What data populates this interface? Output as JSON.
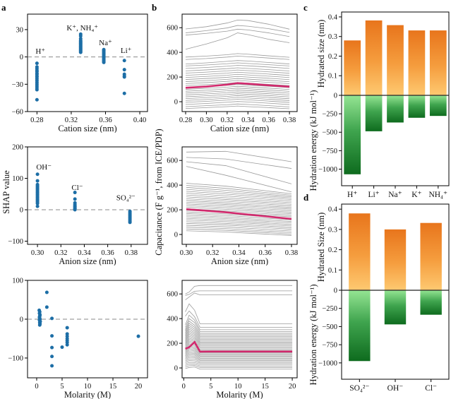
{
  "figure": {
    "panels": {
      "a": "a",
      "b": "b",
      "c": "c",
      "d": "d"
    },
    "shap_axis_label": "SHAP value",
    "capacitance_axis_label": "Capacitance (F g⁻¹, from ICE/PDP)"
  },
  "colors": {
    "scatter_point": "#1d6ea6",
    "mean_line": "#d22a6e",
    "ensemble_line": "#9a9a9a",
    "zero_dash": "#8a8a8a",
    "axis": "#000000",
    "bar_orange_top": "#e8751c",
    "bar_orange_mid": "#f59d3e",
    "bar_orange_bottom": "#fec971",
    "bar_green_top": "#95e593",
    "bar_green_mid": "#3fa44e",
    "bar_green_bottom": "#0e6b1e"
  },
  "chart_data": [
    {
      "id": "shap_vs_cation_size",
      "type": "scatter",
      "xlabel": "Cation size (nm)",
      "ylabel": "SHAP value",
      "xlim": [
        0.269,
        0.409
      ],
      "ylim": [
        -60,
        47
      ],
      "xticks": [
        0.28,
        0.32,
        0.36,
        0.4
      ],
      "xtick_dec": 2,
      "yticks": [
        30,
        0,
        -30,
        -60
      ],
      "zero_line": true,
      "groups": [
        {
          "name": "H+",
          "label": "H⁺",
          "label_x": 0.284,
          "label_y": 3.5,
          "x": 0.28,
          "ys": [
            -7,
            -11,
            -13,
            -15,
            -16,
            -18,
            -19,
            -21,
            -22,
            -24,
            -26,
            -28,
            -30,
            -32,
            -34,
            -36,
            -47
          ]
        },
        {
          "name": "K+ NH4+",
          "label": "K⁺, NH₄⁺",
          "label_x": 0.333,
          "label_y": 29,
          "x": 0.331,
          "ys": [
            5,
            6,
            7,
            8,
            9,
            10,
            11,
            12,
            13,
            14,
            15,
            16,
            17,
            18,
            20,
            23,
            25
          ]
        },
        {
          "name": "Na+",
          "label": "Na⁺",
          "label_x": 0.36,
          "label_y": 13,
          "x": 0.358,
          "ys": [
            -6,
            -5,
            -4,
            -3,
            -2,
            -1,
            0,
            1,
            2,
            3,
            4,
            5,
            6,
            7,
            8
          ]
        },
        {
          "name": "Li+",
          "label": "Li⁺",
          "label_x": 0.384,
          "label_y": 4.5,
          "x": 0.382,
          "ys": [
            -4,
            -14,
            -19,
            -21,
            -22,
            -40
          ]
        }
      ]
    },
    {
      "id": "shap_vs_anion_size",
      "type": "scatter",
      "xlabel": "Anion size (nm)",
      "ylabel": "SHAP value",
      "xlim": [
        0.2915,
        0.394
      ],
      "ylim": [
        -110,
        200
      ],
      "xticks": [
        0.3,
        0.32,
        0.34,
        0.36,
        0.38
      ],
      "xtick_dec": 2,
      "yticks": [
        200,
        100,
        0,
        -100
      ],
      "zero_line": true,
      "groups": [
        {
          "name": "OH-",
          "label": "OH⁻",
          "label_x": 0.3055,
          "label_y": 128,
          "x": 0.3,
          "ys": [
            113,
            92,
            80,
            76,
            72,
            68,
            64,
            60,
            56,
            52,
            48,
            44,
            40,
            36,
            32,
            28,
            24,
            20,
            11
          ]
        },
        {
          "name": "Cl-",
          "label": "Cl⁻",
          "label_x": 0.334,
          "label_y": 63,
          "x": 0.332,
          "ys": [
            55,
            34,
            22,
            17,
            13,
            10,
            7,
            4,
            2,
            0
          ]
        },
        {
          "name": "SO4 2-",
          "label": "SO₄²⁻",
          "label_x": 0.3755,
          "label_y": 30,
          "x": 0.379,
          "ys": [
            -5,
            -9,
            -13,
            -17,
            -21,
            -25,
            -29,
            -33,
            -37,
            -40
          ]
        }
      ]
    },
    {
      "id": "shap_vs_molarity",
      "type": "scatter",
      "xlabel": "Molarity (M)",
      "ylabel": "SHAP value",
      "xlim": [
        -1.8,
        21.8
      ],
      "ylim": [
        -151,
        100
      ],
      "xticks": [
        0,
        5,
        10,
        15,
        20
      ],
      "xtick_dec": 0,
      "yticks": [
        100,
        0,
        -100
      ],
      "zero_line": true,
      "points": [
        [
          0.5,
          23
        ],
        [
          0.6,
          19
        ],
        [
          0.55,
          15
        ],
        [
          0.65,
          11
        ],
        [
          0.6,
          8
        ],
        [
          0.55,
          5
        ],
        [
          0.6,
          2
        ],
        [
          0.65,
          0
        ],
        [
          0.55,
          -2
        ],
        [
          0.6,
          -4
        ],
        [
          0.7,
          -6
        ],
        [
          0.6,
          -9
        ],
        [
          0.65,
          -12
        ],
        [
          0.6,
          -15
        ],
        [
          2,
          69
        ],
        [
          2,
          31
        ],
        [
          3,
          2
        ],
        [
          3,
          -43
        ],
        [
          3,
          -73
        ],
        [
          3,
          -96
        ],
        [
          3,
          -120
        ],
        [
          5,
          -72
        ],
        [
          6,
          -22
        ],
        [
          6,
          -38
        ],
        [
          6,
          -44
        ],
        [
          6,
          -50
        ],
        [
          6,
          -55
        ],
        [
          6,
          -60
        ],
        [
          6,
          -66
        ],
        [
          20,
          -44
        ]
      ]
    },
    {
      "id": "capacitance_vs_cation_size",
      "type": "line",
      "xlabel": "Cation size (nm)",
      "ylabel": "Capacitance (F g⁻¹, from ICE/PDP)",
      "xlim": [
        0.2766,
        0.3874
      ],
      "ylim": [
        -80,
        710
      ],
      "xticks": [
        0.28,
        0.3,
        0.32,
        0.34,
        0.36,
        0.38
      ],
      "xtick_dec": 2,
      "yticks": [
        0,
        200,
        400,
        600
      ],
      "x": [
        0.28,
        0.3,
        0.32,
        0.33,
        0.34,
        0.36,
        0.38
      ],
      "lines": [
        [
          590,
          608,
          638,
          662,
          658,
          628,
          588
        ],
        [
          558,
          576,
          598,
          618,
          612,
          592,
          562
        ],
        [
          540,
          554,
          572,
          588,
          582,
          558,
          528
        ],
        [
          425,
          468,
          518,
          558,
          544,
          506,
          478
        ],
        [
          362,
          370,
          381,
          390,
          385,
          372,
          360
        ],
        [
          342,
          350,
          362,
          370,
          365,
          354,
          342
        ],
        [
          305,
          315,
          327,
          334,
          330,
          318,
          306
        ],
        [
          290,
          298,
          308,
          315,
          310,
          300,
          290
        ],
        [
          270,
          278,
          288,
          295,
          291,
          281,
          270
        ],
        [
          250,
          258,
          268,
          275,
          270,
          260,
          249
        ],
        [
          232,
          240,
          250,
          257,
          252,
          242,
          231
        ],
        [
          214,
          222,
          232,
          239,
          234,
          224,
          213
        ],
        [
          197,
          205,
          215,
          222,
          217,
          207,
          196
        ],
        [
          180,
          188,
          198,
          205,
          200,
          190,
          179
        ],
        [
          163,
          171,
          181,
          188,
          183,
          173,
          162
        ],
        [
          147,
          155,
          165,
          172,
          167,
          157,
          146
        ],
        [
          131,
          139,
          149,
          156,
          151,
          141,
          130
        ],
        [
          115,
          123,
          133,
          140,
          135,
          125,
          114
        ],
        [
          100,
          108,
          118,
          125,
          120,
          110,
          99
        ],
        [
          85,
          93,
          103,
          110,
          105,
          95,
          84
        ],
        [
          70,
          78,
          88,
          95,
          90,
          80,
          69
        ],
        [
          55,
          63,
          73,
          80,
          75,
          65,
          54
        ],
        [
          40,
          48,
          58,
          65,
          60,
          50,
          39
        ],
        [
          25,
          33,
          43,
          50,
          45,
          35,
          24
        ],
        [
          10,
          18,
          28,
          35,
          30,
          20,
          9
        ],
        [
          -5,
          3,
          13,
          20,
          15,
          5,
          -6
        ],
        [
          -22,
          -14,
          -4,
          2,
          -2,
          -12,
          -23
        ],
        [
          -40,
          -32,
          -24,
          -18,
          -22,
          -32,
          -42
        ],
        [
          -55,
          -48,
          -40,
          -35,
          -40,
          -48,
          -57
        ]
      ],
      "mean": [
        113,
        123,
        139,
        151,
        146,
        133,
        122
      ]
    },
    {
      "id": "capacitance_vs_anion_size",
      "type": "line",
      "xlabel": "Anion size (nm)",
      "ylabel": "Capacitance (F g⁻¹, from ICE/PDP)",
      "xlim": [
        0.2968,
        0.3843
      ],
      "ylim": [
        -80,
        710
      ],
      "xticks": [
        0.3,
        0.32,
        0.34,
        0.36,
        0.38
      ],
      "xtick_dec": 2,
      "yticks": [
        0,
        200,
        400,
        600
      ],
      "x": [
        0.3,
        0.33,
        0.38
      ],
      "lines": [
        [
          668,
          674,
          590
        ],
        [
          625,
          612,
          535
        ],
        [
          590,
          558,
          410
        ],
        [
          552,
          480,
          345
        ],
        [
          415,
          392,
          330
        ],
        [
          398,
          374,
          318
        ],
        [
          382,
          358,
          306
        ],
        [
          366,
          342,
          295
        ],
        [
          350,
          328,
          283
        ],
        [
          335,
          313,
          270
        ],
        [
          320,
          298,
          257
        ],
        [
          305,
          284,
          244
        ],
        [
          290,
          270,
          231
        ],
        [
          276,
          256,
          218
        ],
        [
          262,
          243,
          206
        ],
        [
          248,
          230,
          193
        ],
        [
          235,
          217,
          180
        ],
        [
          222,
          204,
          168
        ],
        [
          209,
          191,
          155
        ],
        [
          196,
          179,
          143
        ],
        [
          183,
          166,
          130
        ],
        [
          170,
          154,
          118
        ],
        [
          157,
          141,
          105
        ],
        [
          144,
          129,
          93
        ],
        [
          131,
          116,
          80
        ],
        [
          118,
          104,
          68
        ],
        [
          104,
          90,
          55
        ],
        [
          90,
          77,
          42
        ],
        [
          75,
          62,
          28
        ],
        [
          60,
          48,
          15
        ],
        [
          45,
          34,
          3
        ],
        [
          30,
          20,
          -8
        ]
      ],
      "mean": [
        205,
        180,
        126
      ]
    },
    {
      "id": "capacitance_vs_molarity",
      "type": "line",
      "xlabel": "Molarity (M)",
      "ylabel": "Capacitance (F g⁻¹, from ICE/PDP)",
      "xlim": [
        -0.3,
        20.9
      ],
      "ylim": [
        -80,
        710
      ],
      "xticks": [
        0,
        5,
        10,
        15,
        20
      ],
      "xtick_dec": 0,
      "yticks": [
        0,
        200,
        400,
        600
      ],
      "x": [
        0.3,
        1,
        2,
        3,
        5,
        20
      ],
      "lines": [
        [
          600,
          615,
          662,
          668,
          668,
          668
        ],
        [
          588,
          596,
          622,
          625,
          625,
          625
        ],
        [
          552,
          575,
          608,
          592,
          592,
          592
        ],
        [
          455,
          520,
          468,
          358,
          358,
          358
        ],
        [
          420,
          462,
          415,
          330,
          330,
          330
        ],
        [
          350,
          428,
          388,
          310,
          310,
          310
        ],
        [
          330,
          400,
          368,
          295,
          295,
          295
        ],
        [
          312,
          380,
          346,
          281,
          281,
          281
        ],
        [
          298,
          362,
          330,
          268,
          268,
          268
        ],
        [
          284,
          346,
          314,
          256,
          256,
          256
        ],
        [
          271,
          331,
          299,
          244,
          244,
          244
        ],
        [
          258,
          316,
          285,
          233,
          233,
          233
        ],
        [
          246,
          301,
          272,
          222,
          222,
          222
        ],
        [
          234,
          287,
          259,
          211,
          211,
          211
        ],
        [
          222,
          273,
          246,
          201,
          201,
          201
        ],
        [
          211,
          259,
          234,
          191,
          191,
          191
        ],
        [
          200,
          245,
          222,
          181,
          181,
          181
        ],
        [
          189,
          232,
          211,
          171,
          171,
          171
        ],
        [
          178,
          219,
          200,
          161,
          161,
          161
        ],
        [
          167,
          206,
          189,
          151,
          151,
          151
        ],
        [
          157,
          194,
          178,
          142,
          142,
          142
        ],
        [
          147,
          182,
          167,
          133,
          133,
          133
        ],
        [
          137,
          170,
          157,
          124,
          124,
          124
        ],
        [
          127,
          158,
          147,
          115,
          115,
          115
        ],
        [
          117,
          146,
          137,
          106,
          106,
          106
        ],
        [
          107,
          134,
          126,
          97,
          97,
          97
        ],
        [
          97,
          122,
          116,
          88,
          88,
          88
        ],
        [
          87,
          110,
          105,
          79,
          79,
          79
        ],
        [
          77,
          98,
          94,
          70,
          70,
          70
        ],
        [
          67,
          86,
          83,
          61,
          61,
          61
        ],
        [
          56,
          73,
          71,
          51,
          51,
          51
        ],
        [
          44,
          60,
          58,
          40,
          40,
          40
        ],
        [
          32,
          46,
          45,
          28,
          28,
          28
        ],
        [
          20,
          32,
          32,
          16,
          16,
          16
        ],
        [
          8,
          18,
          20,
          4,
          4,
          4
        ],
        [
          -5,
          4,
          8,
          -10,
          -10,
          -10
        ]
      ],
      "mean": [
        155,
        168,
        210,
        132,
        133,
        133
      ]
    },
    {
      "id": "cation_hydrated_size_and_energy",
      "type": "bar",
      "categories": [
        "H⁺",
        "Li⁺",
        "Na⁺",
        "K⁺",
        "NH₄⁺"
      ],
      "size_label": "Hydrated size (nm)",
      "energy_label": "Hydration energy (kJ mol⁻¹)",
      "size": [
        0.28,
        0.382,
        0.358,
        0.331,
        0.331
      ],
      "energy": [
        -1070,
        -487,
        -368,
        -304,
        -279
      ],
      "size_max": 0.425,
      "energy_min": -1225,
      "size_ticks": [
        0.4,
        0.3,
        0.2,
        0.1,
        0
      ],
      "energy_ticks": [
        -250,
        -500,
        -750,
        -1000
      ],
      "bar_frac": 0.78
    },
    {
      "id": "anion_hydrated_size_and_energy",
      "type": "bar",
      "categories": [
        "SO₄²⁻",
        "OH⁻",
        "Cl⁻"
      ],
      "size_label": "Hydrated Size (nm)",
      "energy_label": "Hydration energy (kJ mol⁻¹)",
      "size": [
        0.379,
        0.3,
        0.332
      ],
      "energy": [
        -975,
        -470,
        -337
      ],
      "size_max": 0.425,
      "energy_min": -1225,
      "size_ticks": [
        0.4,
        0.3,
        0.2,
        0.1,
        0
      ],
      "energy_ticks": [
        -250,
        -500,
        -750,
        -1000
      ],
      "bar_frac": 0.6
    }
  ]
}
